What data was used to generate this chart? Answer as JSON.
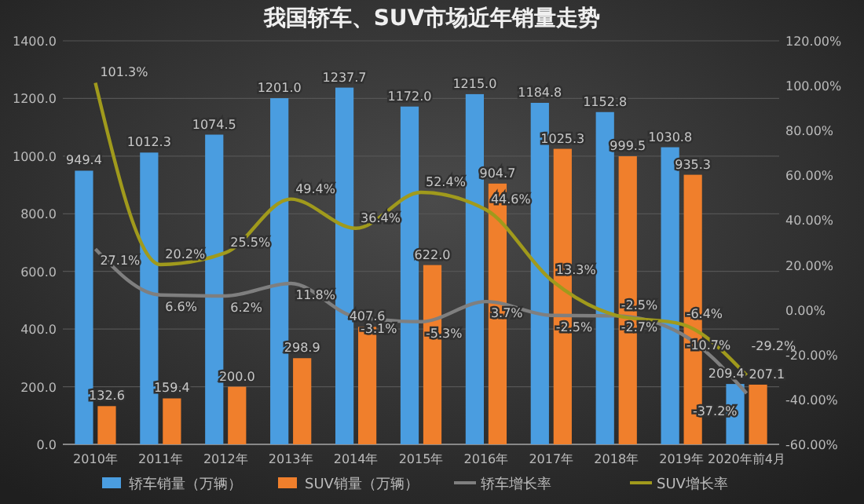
{
  "chart_data": {
    "type": "bar",
    "title": "我国轿车、SUV市场近年销量走势",
    "categories": [
      "2010年",
      "2011年",
      "2012年",
      "2013年",
      "2014年",
      "2015年",
      "2016年",
      "2017年",
      "2018年",
      "2019年",
      "2020年前4月"
    ],
    "series": [
      {
        "name": "轿车销量（万辆）",
        "color": "#4a9de0",
        "values": [
          949.4,
          1012.3,
          1074.5,
          1201.0,
          1237.7,
          1172.0,
          1215.0,
          1184.8,
          1152.8,
          1030.8,
          209.4
        ],
        "value_labels": [
          "949.4",
          "1012.3",
          "1074.5",
          "1201.0",
          "1237.7",
          "1172.0",
          "1215.0",
          "1184.8",
          "1152.8",
          "1030.8",
          "209.4"
        ]
      },
      {
        "name": "SUV销量（万辆）",
        "color": "#f07f2c",
        "values": [
          132.6,
          159.4,
          200.0,
          298.9,
          407.6,
          622.0,
          904.7,
          1025.3,
          999.5,
          935.3,
          207.1
        ],
        "value_labels": [
          "132.6",
          "159.4",
          "200.0",
          "298.9",
          "407.6",
          "622.0",
          "904.7",
          "1025.3",
          "999.5",
          "935.3",
          "207.1"
        ]
      },
      {
        "name": "轿车增长率",
        "type": "line",
        "axis": "y2",
        "color": "#7f7f7f",
        "values": [
          27.1,
          6.6,
          6.2,
          11.8,
          -3.1,
          -5.3,
          3.7,
          -2.5,
          -2.7,
          -10.7,
          -37.2
        ],
        "value_labels": [
          "27.1%",
          "6.6%",
          "6.2%",
          "11.8%",
          "-3.1%",
          "-5.3%",
          "3.7%",
          "-2.5%",
          "-2.7%",
          "-10.7%",
          "-37.2%"
        ]
      },
      {
        "name": "SUV增长率",
        "type": "line",
        "axis": "y2",
        "color": "#a09a1c",
        "values": [
          101.3,
          20.2,
          25.5,
          49.4,
          36.4,
          52.4,
          44.6,
          13.3,
          -2.5,
          -6.4,
          -29.2
        ],
        "value_labels": [
          "101.3%",
          "20.2%",
          "25.5%",
          "49.4%",
          "36.4%",
          "52.4%",
          "44.6%",
          "13.3%",
          "-2.5%",
          "-6.4%",
          "-29.2%"
        ]
      }
    ],
    "ylim": [
      0,
      1400
    ],
    "yticks": [
      {
        "value": 0,
        "label": "0.0"
      },
      {
        "value": 200,
        "label": "200.0"
      },
      {
        "value": 400,
        "label": "400.0"
      },
      {
        "value": 600,
        "label": "600.0"
      },
      {
        "value": 800,
        "label": "800.0"
      },
      {
        "value": 1000,
        "label": "1000.0"
      },
      {
        "value": 1200,
        "label": "1200.0"
      },
      {
        "value": 1400,
        "label": "1400.0"
      }
    ],
    "y2lim": [
      -60,
      120
    ],
    "y2ticks": [
      {
        "value": -60,
        "label": "-60.00%"
      },
      {
        "value": -40,
        "label": "-40.00%"
      },
      {
        "value": -20,
        "label": "-20.00%"
      },
      {
        "value": 0,
        "label": "0.00%"
      },
      {
        "value": 20,
        "label": "20.00%"
      },
      {
        "value": 40,
        "label": "40.00%"
      },
      {
        "value": 60,
        "label": "60.00%"
      },
      {
        "value": 80,
        "label": "80.00%"
      },
      {
        "value": 100,
        "label": "100.00%"
      },
      {
        "value": 120,
        "label": "120.00%"
      }
    ],
    "grid": "y",
    "legend": "bottom",
    "marker": "none",
    "line_style": "solid"
  }
}
